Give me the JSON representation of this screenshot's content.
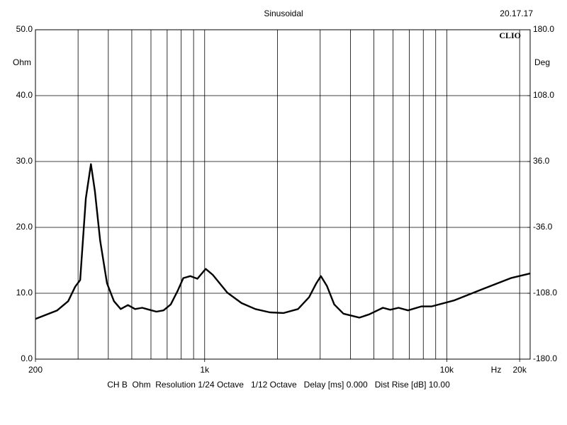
{
  "chart_data": {
    "type": "line",
    "title": "Sinusoidal",
    "time": "20.17.17",
    "logo": "CLIO",
    "y_unit": "Ohm",
    "y2_unit": "Deg",
    "x_unit": "Hz",
    "footer": "CH B  Ohm  Resolution 1/24 Octave   1/12 Octave   Delay [ms] 0.000   Dist Rise [dB] 10.00",
    "log_x": true,
    "xlim": [
      200,
      22100
    ],
    "xticks": [
      200,
      {
        "value": 1000,
        "label": "1k"
      },
      {
        "value": 10000,
        "label": "10k"
      },
      {
        "value": 20000,
        "label": "20k"
      }
    ],
    "xgrid": [
      300,
      400,
      500,
      600,
      700,
      800,
      900,
      1000,
      2000,
      3000,
      4000,
      5000,
      6000,
      7000,
      8000,
      9000,
      10000,
      20000
    ],
    "ylim": [
      0,
      50
    ],
    "yticks": [
      {
        "value": 0,
        "label": "0.0"
      },
      {
        "value": 10,
        "label": "10.0"
      },
      {
        "value": 20,
        "label": "20.0"
      },
      {
        "value": 30,
        "label": "30.0"
      },
      {
        "value": 40,
        "label": "40.0"
      },
      {
        "value": 50,
        "label": "50.0"
      }
    ],
    "y2lim": [
      -180,
      180
    ],
    "y2ticks": [
      {
        "value": -180,
        "label": "-180.0"
      },
      {
        "value": -108,
        "label": "-108.0"
      },
      {
        "value": -36,
        "label": "-36.0"
      },
      {
        "value": 36,
        "label": "36.0"
      },
      {
        "value": 108,
        "label": "108.0"
      },
      {
        "value": 180,
        "label": "180.0"
      }
    ],
    "grid": true,
    "color": "#000000",
    "x": [
      200,
      246,
      273,
      292,
      306,
      323,
      339,
      352,
      370,
      395,
      422,
      450,
      482,
      516,
      552,
      591,
      632,
      676,
      724,
      774,
      816,
      872,
      933,
      1010,
      1080,
      1240,
      1420,
      1620,
      1860,
      2120,
      2430,
      2700,
      2890,
      3020,
      3200,
      3430,
      3740,
      4360,
      4780,
      5450,
      5840,
      6320,
      6920,
      7850,
      8650,
      10700,
      14000,
      18400,
      22100
    ],
    "values": [
      6.1,
      7.4,
      8.8,
      11.0,
      12.0,
      24.4,
      29.6,
      25.5,
      18.0,
      11.5,
      8.8,
      7.6,
      8.2,
      7.6,
      7.8,
      7.5,
      7.2,
      7.4,
      8.3,
      10.4,
      12.3,
      12.6,
      12.2,
      13.7,
      12.8,
      10.1,
      8.5,
      7.6,
      7.1,
      7.0,
      7.6,
      9.4,
      11.5,
      12.6,
      11.1,
      8.3,
      6.9,
      6.3,
      6.8,
      7.8,
      7.5,
      7.8,
      7.4,
      8.0,
      8.0,
      8.9,
      10.6,
      12.3,
      13.0
    ]
  }
}
